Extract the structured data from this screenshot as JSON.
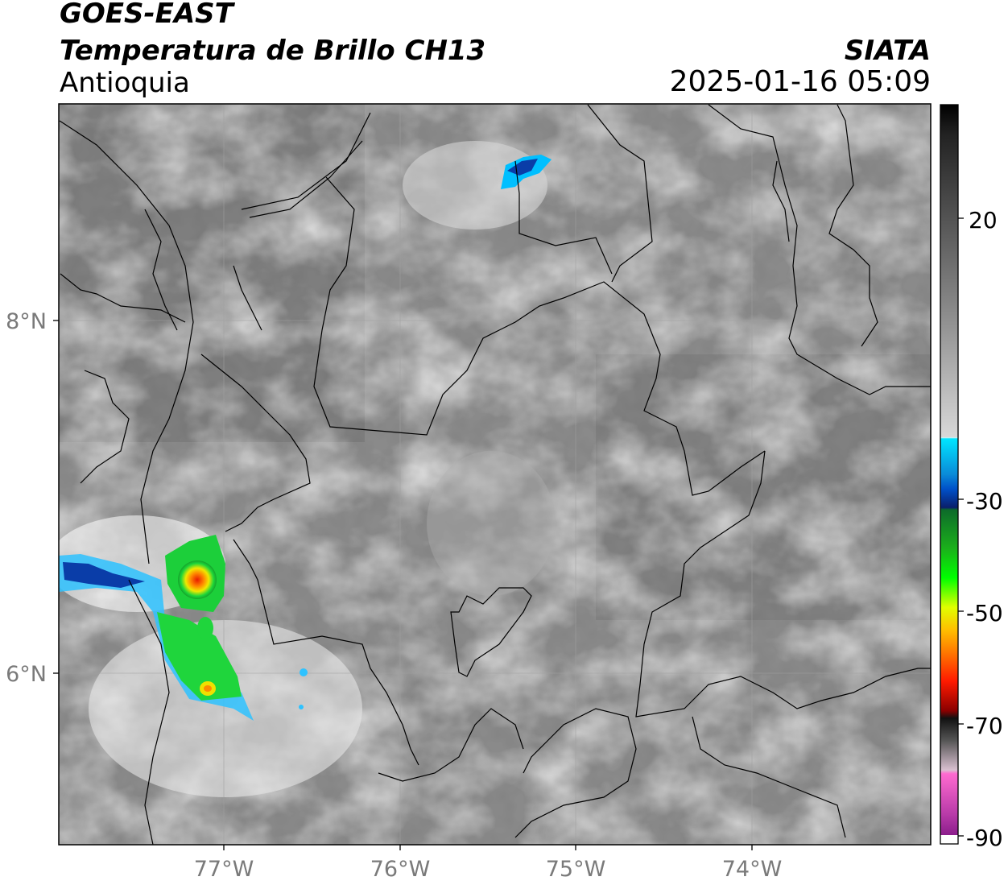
{
  "header": {
    "satellite": "GOES-EAST",
    "product": "Temperatura de Brillo CH13",
    "region": "Antioquia",
    "organization": "SIATA",
    "timestamp": "2025-01-16 05:09"
  },
  "map": {
    "latitude_labels": [
      "8°N",
      "6°N"
    ],
    "longitude_labels": [
      "77°W",
      "76°W",
      "75°W",
      "74°W"
    ],
    "gridlines": true,
    "background": "grayscale infrared brightness temperature",
    "convective_cells": [
      {
        "location": "western Antioquia / Chocó border",
        "colors": [
          "#0a3da8",
          "#1bd13a",
          "#f5e400",
          "#ff7a00",
          "#e81b00"
        ]
      },
      {
        "location": "north, near 8.6°N 75.2°W",
        "colors": [
          "#00bfff",
          "#0a3da8"
        ]
      }
    ]
  },
  "colorbar": {
    "tick_labels": [
      "20",
      "-30",
      "-50",
      "-70",
      "-90"
    ],
    "palette": [
      "#000000",
      "#777777",
      "#f0f0f0",
      "#00e5ff",
      "#0050c8",
      "#0a1f6b",
      "#1bb01b",
      "#00ff00",
      "#e0ff00",
      "#ffa500",
      "#ff2a00",
      "#8a0000",
      "#1a1a1a",
      "#d9c0d0",
      "#ff66cc",
      "#8c1e8c",
      "#ffffff"
    ]
  }
}
